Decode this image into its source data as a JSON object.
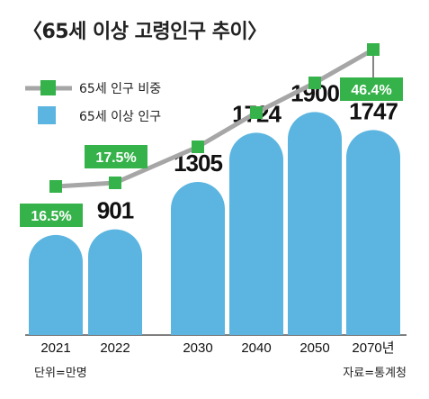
{
  "chart_data": {
    "type": "bar",
    "title": "〈65세 이상 고령인구 추이〉",
    "categories": [
      "2021",
      "2022",
      "2030",
      "2040",
      "2050",
      "2070년"
    ],
    "series": [
      {
        "name": "65세 이상 인구",
        "values": [
          853,
          901,
          1305,
          1724,
          1900,
          1747
        ],
        "color": "#5bb5e0"
      },
      {
        "name": "65세 인구 비중",
        "type": "line",
        "values": [
          null,
          null,
          null,
          null,
          null,
          null
        ],
        "labeled_values": {
          "2021": "16.5%",
          "2022": "17.5%",
          "2070년": "46.4%"
        },
        "line_color": "#a6a6a6",
        "marker_color": "#35b24a"
      }
    ],
    "unit_note": "단위=만명",
    "source": "자료=통계청",
    "legend": "top-left"
  }
}
